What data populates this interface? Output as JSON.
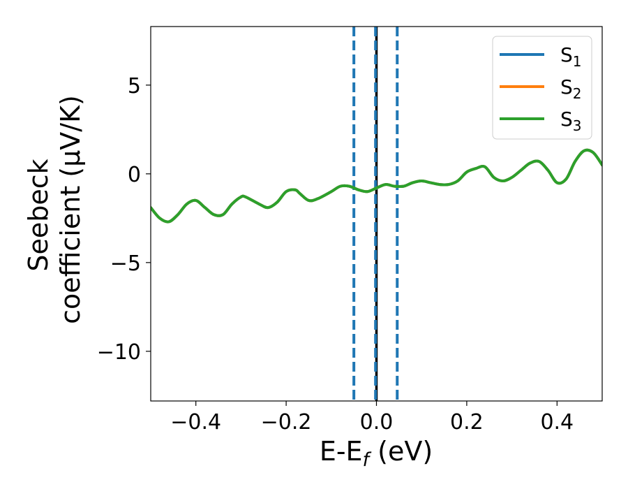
{
  "chart_data": {
    "type": "line",
    "xlabel": {
      "main": "E-E",
      "sub": "f",
      "suffix": " (eV)"
    },
    "ylabel": {
      "line1": "Seebeck",
      "line2": "coefficient  (μV/K)"
    },
    "xlim": [
      -0.5,
      0.5
    ],
    "ylim": [
      -12.8,
      8.3
    ],
    "xticks": [
      -0.4,
      -0.2,
      0.0,
      0.2,
      0.4
    ],
    "xtick_labels": [
      "−0.4",
      "−0.2",
      "0.0",
      "0.2",
      "0.4"
    ],
    "yticks": [
      5,
      0,
      -5,
      -10
    ],
    "ytick_labels": [
      "5",
      "0",
      "−5",
      "−10"
    ],
    "legend_position": "top-right",
    "grid": false,
    "vlines": [
      {
        "x": -0.05,
        "style": "dashed",
        "color": "#1f77b4"
      },
      {
        "x": 0.0,
        "style": "solid",
        "color": "#000000"
      },
      {
        "x": -0.002,
        "style": "dashed",
        "color": "#1f77b4"
      },
      {
        "x": 0.046,
        "style": "dashed",
        "color": "#1f77b4"
      }
    ],
    "x": [
      -0.5,
      -0.48,
      -0.46,
      -0.44,
      -0.42,
      -0.4,
      -0.38,
      -0.36,
      -0.34,
      -0.32,
      -0.3,
      -0.29,
      -0.26,
      -0.24,
      -0.22,
      -0.2,
      -0.18,
      -0.17,
      -0.15,
      -0.13,
      -0.1,
      -0.08,
      -0.06,
      -0.04,
      -0.02,
      0.0,
      0.02,
      0.04,
      0.06,
      0.08,
      0.1,
      0.12,
      0.14,
      0.16,
      0.18,
      0.2,
      0.22,
      0.24,
      0.26,
      0.28,
      0.3,
      0.32,
      0.34,
      0.36,
      0.38,
      0.4,
      0.42,
      0.44,
      0.46,
      0.48,
      0.5
    ],
    "series": [
      {
        "name": "S",
        "sub": "1",
        "color": "#1f77b4",
        "values": [
          -1.9,
          -2.5,
          -2.7,
          -2.3,
          -1.7,
          -1.5,
          -1.9,
          -2.3,
          -2.3,
          -1.7,
          -1.3,
          -1.3,
          -1.7,
          -1.9,
          -1.6,
          -1.0,
          -0.9,
          -1.1,
          -1.5,
          -1.4,
          -1.0,
          -0.7,
          -0.7,
          -0.9,
          -1.0,
          -0.8,
          -0.6,
          -0.7,
          -0.7,
          -0.5,
          -0.4,
          -0.5,
          -0.6,
          -0.6,
          -0.4,
          0.1,
          0.3,
          0.4,
          -0.2,
          -0.4,
          -0.2,
          0.2,
          0.6,
          0.7,
          0.2,
          -0.5,
          -0.3,
          0.7,
          1.3,
          1.2,
          0.5
        ]
      },
      {
        "name": "S",
        "sub": "2",
        "color": "#ff7f0e",
        "values": [
          -1.9,
          -2.5,
          -2.7,
          -2.3,
          -1.7,
          -1.5,
          -1.9,
          -2.3,
          -2.3,
          -1.7,
          -1.3,
          -1.3,
          -1.7,
          -1.9,
          -1.6,
          -1.0,
          -0.9,
          -1.1,
          -1.5,
          -1.4,
          -1.0,
          -0.7,
          -0.7,
          -0.9,
          -1.0,
          -0.8,
          -0.6,
          -0.7,
          -0.7,
          -0.5,
          -0.4,
          -0.5,
          -0.6,
          -0.6,
          -0.4,
          0.1,
          0.3,
          0.4,
          -0.2,
          -0.4,
          -0.2,
          0.2,
          0.6,
          0.7,
          0.2,
          -0.5,
          -0.3,
          0.7,
          1.3,
          1.2,
          0.5
        ]
      },
      {
        "name": "S",
        "sub": "3",
        "color": "#2ca02c",
        "values": [
          -1.9,
          -2.5,
          -2.7,
          -2.3,
          -1.7,
          -1.5,
          -1.9,
          -2.3,
          -2.3,
          -1.7,
          -1.3,
          -1.3,
          -1.7,
          -1.9,
          -1.6,
          -1.0,
          -0.9,
          -1.1,
          -1.5,
          -1.4,
          -1.0,
          -0.7,
          -0.7,
          -0.9,
          -1.0,
          -0.8,
          -0.6,
          -0.7,
          -0.7,
          -0.5,
          -0.4,
          -0.5,
          -0.6,
          -0.6,
          -0.4,
          0.1,
          0.3,
          0.4,
          -0.2,
          -0.4,
          -0.2,
          0.2,
          0.6,
          0.7,
          0.2,
          -0.5,
          -0.3,
          0.7,
          1.3,
          1.2,
          0.5
        ]
      }
    ]
  }
}
